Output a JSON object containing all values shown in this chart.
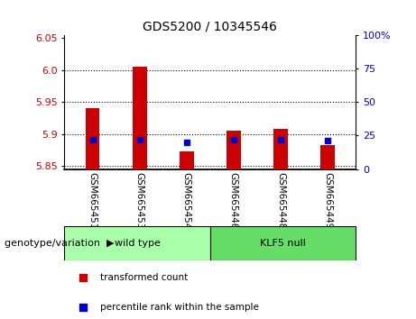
{
  "title": "GDS5200 / 10345546",
  "categories": [
    "GSM665451",
    "GSM665453",
    "GSM665454",
    "GSM665446",
    "GSM665448",
    "GSM665449"
  ],
  "red_values": [
    5.94,
    6.005,
    5.873,
    5.905,
    5.908,
    5.883
  ],
  "blue_values_pct": [
    22,
    22,
    20,
    22,
    22,
    21
  ],
  "ylim_left": [
    5.845,
    6.055
  ],
  "ylim_right": [
    0,
    100
  ],
  "yticks_left": [
    5.85,
    5.9,
    5.95,
    6.0,
    6.05
  ],
  "yticks_right": [
    0,
    25,
    50,
    75,
    100
  ],
  "ytick_labels_right": [
    "0",
    "25",
    "50",
    "75",
    "100%"
  ],
  "left_color": "#cc0000",
  "right_color": "#0000cc",
  "group1_label": "wild type",
  "group2_label": "KLF5 null",
  "group1_color": "#aaffaa",
  "group2_color": "#66dd66",
  "group_label": "genotype/variation",
  "legend_red": "transformed count",
  "legend_blue": "percentile rank within the sample",
  "tick_label_color_left": "#cc0000",
  "tick_label_color_right": "#0000cc",
  "sample_bg_color": "#cccccc",
  "plot_bg": "#ffffff",
  "base_value": 5.845
}
